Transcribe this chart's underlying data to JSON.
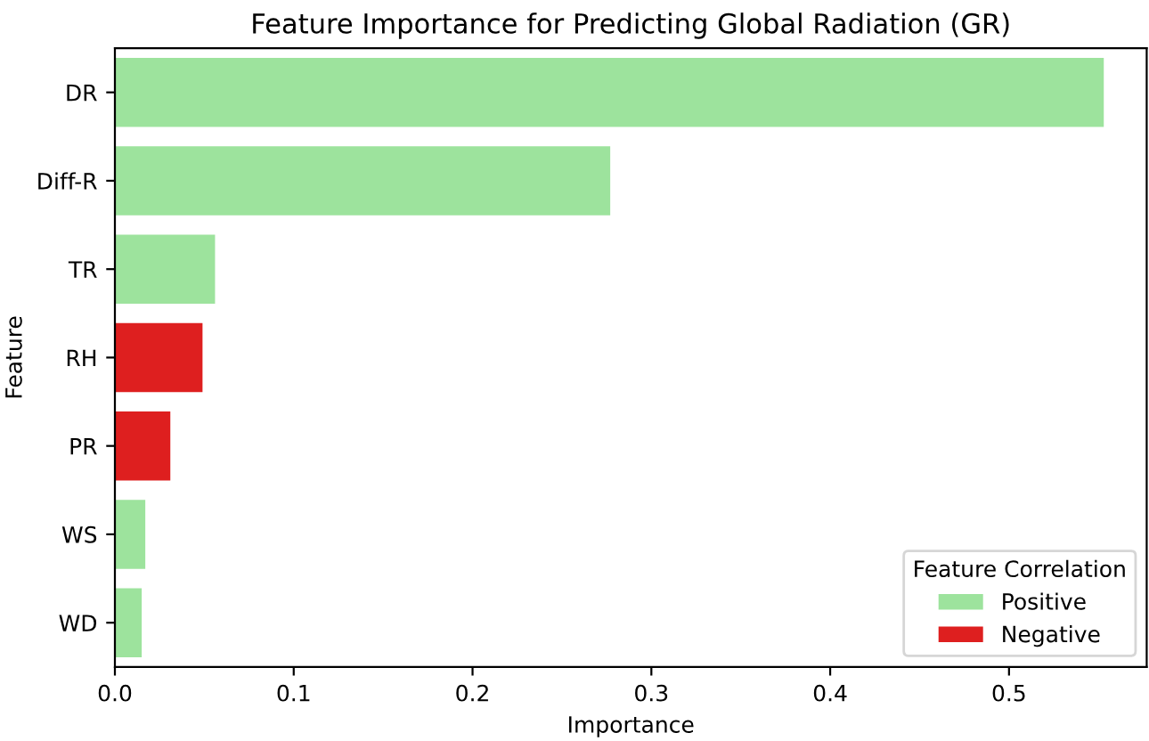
{
  "chart_data": {
    "type": "bar",
    "orientation": "horizontal",
    "title": "Feature Importance for Predicting Global Radiation (GR)",
    "xlabel": "Importance",
    "ylabel": "Feature",
    "legend_title": "Feature Correlation",
    "categories": [
      "DR",
      "Diff-R",
      "TR",
      "RH",
      "PR",
      "WS",
      "WD"
    ],
    "series": [
      {
        "name": "Positive",
        "color": "#9de39d",
        "values": [
          0.553,
          0.277,
          0.056,
          null,
          null,
          0.017,
          0.015
        ]
      },
      {
        "name": "Negative",
        "color": "#de1f1f",
        "values": [
          null,
          null,
          null,
          0.049,
          0.031,
          null,
          null
        ]
      }
    ],
    "xlim": [
      0,
      0.577
    ],
    "xticks": [
      {
        "value": 0,
        "label": "0.0"
      },
      0.1,
      0.2,
      0.3,
      0.4,
      0.5
    ],
    "grid": false,
    "legend": "bottom right"
  }
}
